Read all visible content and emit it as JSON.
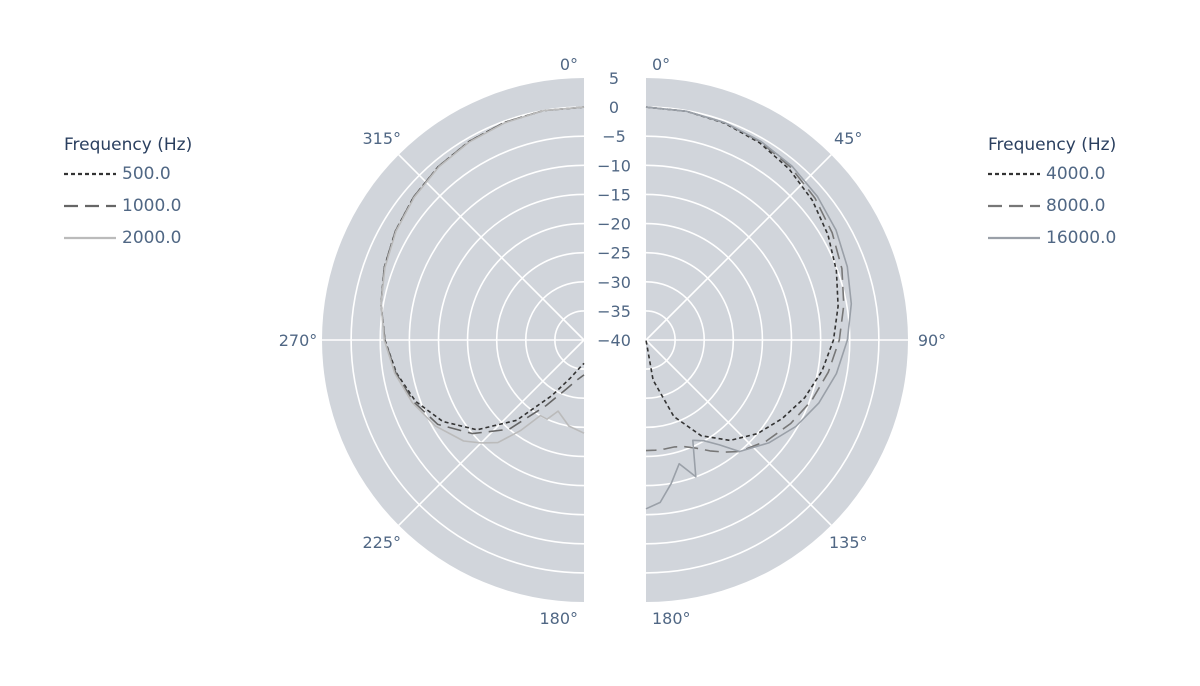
{
  "chart_data": [
    {
      "type": "polar-line",
      "half": "left",
      "angular_ticks": [
        "0°",
        "315°",
        "270°",
        "225°",
        "180°"
      ],
      "radial_range": [
        -40,
        5
      ],
      "radial_ticks": [
        "5",
        "0",
        "−5",
        "−10",
        "−15",
        "−20",
        "−25",
        "−30",
        "−35",
        "−40"
      ],
      "legend_title": "Frequency (Hz)",
      "series": [
        {
          "name": "500.0",
          "dash": "dot",
          "color": "#333333",
          "theta": [
            0,
            10,
            20,
            30,
            40,
            50,
            60,
            70,
            80,
            90,
            100,
            110,
            120,
            130,
            140,
            150,
            160,
            170,
            180
          ],
          "r": [
            0,
            0,
            -0.2,
            -0.6,
            -1.1,
            -1.8,
            -2.6,
            -3.5,
            -4.6,
            -5.8,
            -7.3,
            -9.2,
            -12,
            -16,
            -22,
            -29,
            -33,
            -35,
            -36
          ]
        },
        {
          "name": "1000.0",
          "dash": "dash",
          "color": "#666666",
          "theta": [
            0,
            10,
            20,
            30,
            40,
            50,
            60,
            70,
            80,
            90,
            100,
            110,
            120,
            130,
            140,
            150,
            160,
            170,
            180
          ],
          "r": [
            0,
            0,
            -0.2,
            -0.6,
            -1.1,
            -1.8,
            -2.6,
            -3.5,
            -4.6,
            -5.8,
            -7.2,
            -8.9,
            -11,
            -15,
            -20,
            -27,
            -31,
            -33,
            -34
          ]
        },
        {
          "name": "2000.0",
          "dash": "solid",
          "color": "#bbbbbb",
          "theta": [
            0,
            10,
            20,
            30,
            40,
            50,
            60,
            70,
            80,
            90,
            100,
            110,
            120,
            130,
            135,
            140,
            145,
            150,
            155,
            160,
            170,
            180
          ],
          "r": [
            0,
            0,
            -0.3,
            -0.7,
            -1.2,
            -1.9,
            -2.7,
            -3.6,
            -4.6,
            -5.7,
            -7.0,
            -8.6,
            -10.5,
            -13,
            -15,
            -17,
            -21,
            -25,
            -25,
            -27,
            -25,
            -24
          ]
        }
      ]
    },
    {
      "type": "polar-line",
      "half": "right",
      "angular_ticks": [
        "0°",
        "45°",
        "90°",
        "135°",
        "180°"
      ],
      "radial_range": [
        -40,
        5
      ],
      "legend_title": "Frequency (Hz)",
      "series": [
        {
          "name": "4000.0",
          "dash": "dot",
          "color": "#333333",
          "theta": [
            0,
            10,
            20,
            30,
            40,
            50,
            60,
            70,
            80,
            90,
            100,
            110,
            120,
            130,
            140,
            150,
            160,
            170,
            180
          ],
          "r": [
            0,
            -0.1,
            -0.4,
            -0.9,
            -1.7,
            -2.7,
            -3.9,
            -5.2,
            -6.5,
            -7.8,
            -9.3,
            -11,
            -13,
            -15,
            -17.5,
            -21,
            -26,
            -33,
            -40
          ]
        },
        {
          "name": "8000.0",
          "dash": "dash",
          "color": "#777777",
          "theta": [
            0,
            10,
            20,
            30,
            40,
            50,
            60,
            70,
            80,
            90,
            100,
            110,
            120,
            130,
            140,
            145,
            150,
            155,
            160,
            165,
            170,
            175,
            180
          ],
          "r": [
            0,
            -0.1,
            -0.3,
            -0.7,
            -1.3,
            -2.1,
            -3.1,
            -4.2,
            -5.5,
            -6.8,
            -8.2,
            -9.7,
            -11.3,
            -13,
            -15,
            -16.5,
            -18,
            -19.5,
            -20.5,
            -21,
            -21,
            -21,
            -21
          ]
        },
        {
          "name": "16000.0",
          "dash": "solid",
          "color": "#9aa0a8",
          "theta": [
            0,
            10,
            20,
            30,
            40,
            50,
            60,
            70,
            80,
            90,
            100,
            110,
            120,
            130,
            140,
            145,
            150,
            155,
            160,
            165,
            170,
            175,
            180
          ],
          "r": [
            0,
            -0.1,
            -0.3,
            -0.6,
            -1.0,
            -1.6,
            -2.3,
            -3.2,
            -4.2,
            -5.4,
            -6.8,
            -8.4,
            -10.3,
            -12.5,
            -15,
            -18,
            -20,
            -21,
            -15,
            -18,
            -15,
            -12,
            -11
          ]
        }
      ]
    }
  ]
}
